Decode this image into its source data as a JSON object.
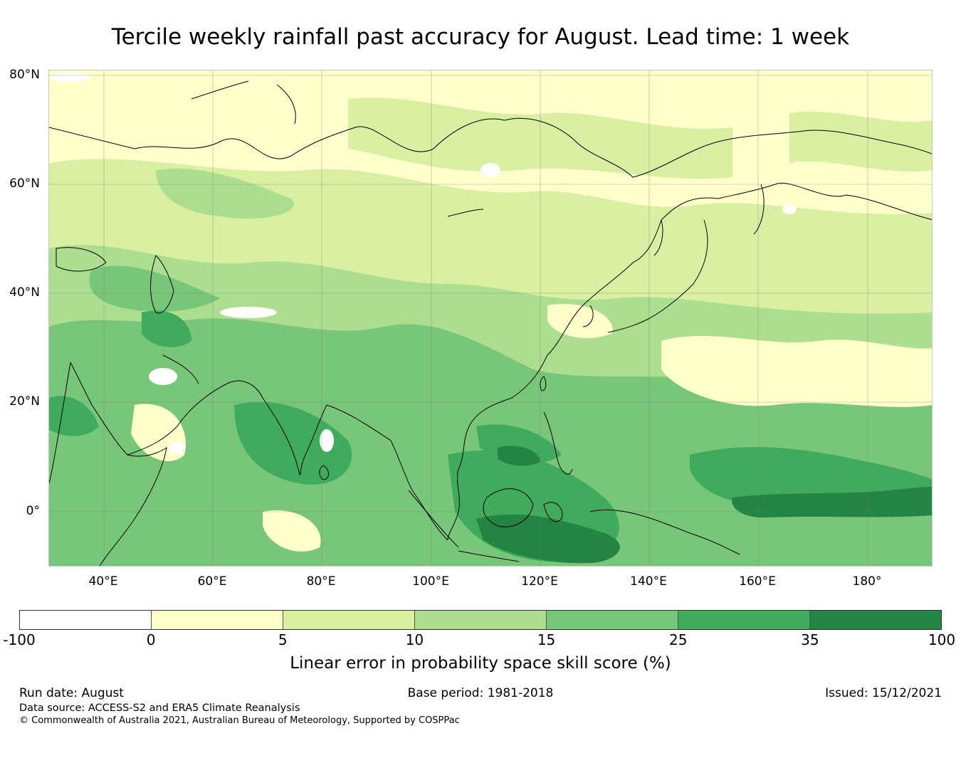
{
  "title": "Tercile weekly rainfall past accuracy for August. Lead time: 1 week",
  "map": {
    "region": "Asia",
    "projection": "equirectangular",
    "lon_range": [
      30,
      192
    ],
    "lat_range": [
      -10,
      81
    ],
    "lat_labels": [
      "80°N",
      "60°N",
      "40°N",
      "20°N",
      "0°"
    ],
    "lon_labels": [
      "40°E",
      "60°E",
      "80°E",
      "100°E",
      "120°E",
      "140°E",
      "160°E",
      "180°"
    ],
    "gridlines": true,
    "coastlines": true
  },
  "colorbar": {
    "label": "Linear error in probability space skill score (%)",
    "ticks": [
      "-100",
      "0",
      "5",
      "10",
      "15",
      "25",
      "35",
      "100"
    ],
    "colors": [
      "#ffffff",
      "#ffffcc",
      "#d9f0a3",
      "#addd8e",
      "#78c679",
      "#41ab5d",
      "#238443"
    ]
  },
  "footer": {
    "run_date": "Run date: August",
    "base_period": "Base period: 1981-2018",
    "issued": "Issued: 15/12/2021",
    "data_source": "Data source: ACCESS-S2 and ERA5 Climate Reanalysis",
    "copyright": "© Commonwealth of Australia 2021, Australian Bureau of Meteorology, Supported by COSPPac"
  }
}
